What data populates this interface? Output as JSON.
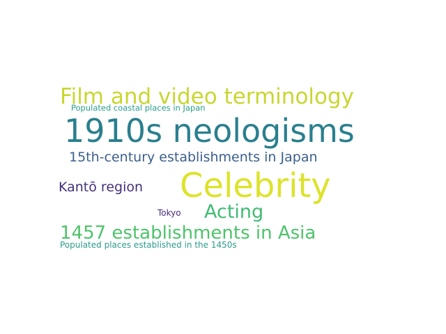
{
  "words": [
    {
      "id": "film",
      "text": "Film and video terminology",
      "color": "#c9d631"
    },
    {
      "id": "coast",
      "text": "Populated coastal places in Japan",
      "color": "#2a9e8a"
    },
    {
      "id": "neo",
      "text": "1910s neologisms",
      "color": "#2a7f8e"
    },
    {
      "id": "c15",
      "text": "15th-century establishments in Japan",
      "color": "#3b5e8c"
    },
    {
      "id": "celeb",
      "text": "Celebrity",
      "color": "#dde32a"
    },
    {
      "id": "kanto",
      "text": "Kantō region",
      "color": "#46307a"
    },
    {
      "id": "acting",
      "text": "Acting",
      "color": "#3fbc73"
    },
    {
      "id": "tokyo",
      "text": "Tokyo",
      "color": "#462a7a"
    },
    {
      "id": "y1457",
      "text": "1457 establishments in Asia",
      "color": "#4ec36b"
    },
    {
      "id": "pop50",
      "text": "Populated places established in the 1450s",
      "color": "#2b9a8c"
    }
  ]
}
